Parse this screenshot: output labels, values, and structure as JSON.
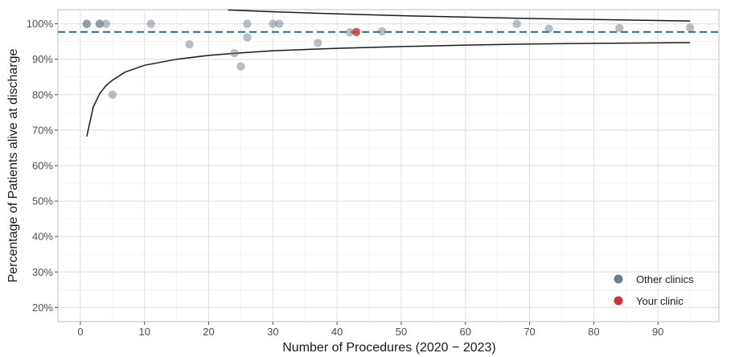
{
  "chart_data": {
    "type": "scatter",
    "title": "",
    "xlabel": "Number of Procedures (2020 − 2023)",
    "ylabel": "Percentage of Patients alive at discharge",
    "xlim": [
      -3.5,
      99.5
    ],
    "ylim": [
      16,
      104
    ],
    "x_ticks": [
      0,
      10,
      20,
      30,
      40,
      50,
      60,
      70,
      80,
      90
    ],
    "x_tick_labels": [
      "0",
      "10",
      "20",
      "30",
      "40",
      "50",
      "60",
      "70",
      "80",
      "90"
    ],
    "y_ticks": [
      20,
      30,
      40,
      50,
      60,
      70,
      80,
      90,
      100
    ],
    "y_tick_labels": [
      "20%",
      "30%",
      "40%",
      "50%",
      "60%",
      "70%",
      "80%",
      "90%",
      "100%"
    ],
    "grid": true,
    "legend_position": "bottom-right",
    "series": [
      {
        "name": "Other clinics",
        "color": "#6c7f8c",
        "points": [
          {
            "x": 1,
            "y": 100
          },
          {
            "x": 1,
            "y": 100
          },
          {
            "x": 3,
            "y": 100
          },
          {
            "x": 3,
            "y": 100
          },
          {
            "x": 4,
            "y": 100
          },
          {
            "x": 5,
            "y": 80
          },
          {
            "x": 11,
            "y": 100
          },
          {
            "x": 17,
            "y": 94.2
          },
          {
            "x": 24,
            "y": 91.7
          },
          {
            "x": 25,
            "y": 88
          },
          {
            "x": 26,
            "y": 100
          },
          {
            "x": 26,
            "y": 96.2
          },
          {
            "x": 30,
            "y": 100
          },
          {
            "x": 31,
            "y": 100
          },
          {
            "x": 37,
            "y": 94.6
          },
          {
            "x": 42,
            "y": 97.6
          },
          {
            "x": 47,
            "y": 97.9
          },
          {
            "x": 68,
            "y": 100
          },
          {
            "x": 73,
            "y": 98.6
          },
          {
            "x": 84,
            "y": 98.8
          },
          {
            "x": 95,
            "y": 98.9
          }
        ]
      },
      {
        "name": "Your clinic",
        "color": "#cc3333",
        "points": [
          {
            "x": 43,
            "y": 97.7
          }
        ]
      }
    ],
    "reference_line": {
      "y": 97.7,
      "color": "#1f6f8b"
    },
    "funnel_limits": {
      "color": "#1a1a1a",
      "upper": [
        {
          "x": 23,
          "y": 103.9
        },
        {
          "x": 30,
          "y": 103.4
        },
        {
          "x": 40,
          "y": 102.8
        },
        {
          "x": 50,
          "y": 102.3
        },
        {
          "x": 60,
          "y": 101.9
        },
        {
          "x": 70,
          "y": 101.5
        },
        {
          "x": 80,
          "y": 101.2
        },
        {
          "x": 95,
          "y": 100.8
        }
      ],
      "lower": [
        {
          "x": 1,
          "y": 68.2
        },
        {
          "x": 2,
          "y": 76.5
        },
        {
          "x": 3,
          "y": 80.3
        },
        {
          "x": 4,
          "y": 82.6
        },
        {
          "x": 5,
          "y": 84.1
        },
        {
          "x": 7,
          "y": 86.4
        },
        {
          "x": 10,
          "y": 88.3
        },
        {
          "x": 15,
          "y": 90.0
        },
        {
          "x": 20,
          "y": 91.1
        },
        {
          "x": 25,
          "y": 91.8
        },
        {
          "x": 30,
          "y": 92.4
        },
        {
          "x": 40,
          "y": 93.1
        },
        {
          "x": 50,
          "y": 93.6
        },
        {
          "x": 60,
          "y": 94.0
        },
        {
          "x": 70,
          "y": 94.3
        },
        {
          "x": 80,
          "y": 94.5
        },
        {
          "x": 95,
          "y": 94.7
        }
      ]
    }
  }
}
